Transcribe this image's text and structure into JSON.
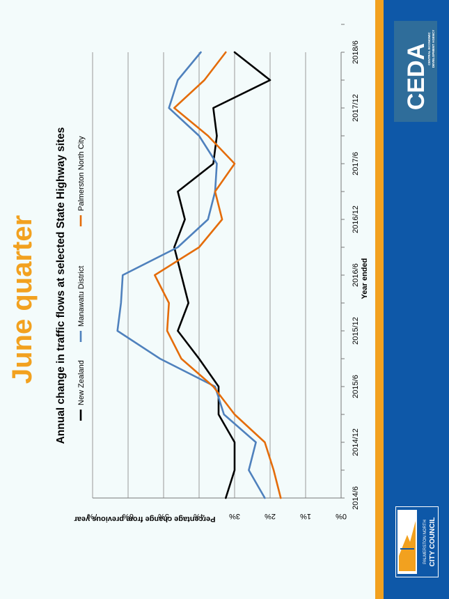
{
  "slide": {
    "heading": "June quarter",
    "accent_color": "#f2a11f",
    "band_color": "#0e58a8"
  },
  "logos": {
    "ceda": {
      "name": "CEDA",
      "subtitle_line1": "CENTRAL ECONOMIC",
      "subtitle_line2": "DEVELOPMENT AGENCY"
    },
    "pncc": {
      "line1": "PALMERSTON NORTH",
      "line2": "CITY COUNCIL"
    }
  },
  "chart_data": {
    "type": "line",
    "title": "Annual change in traffic flows at selected State Highway sites",
    "xlabel": "Year ended",
    "ylabel": "Percentage change from previous year",
    "ylim": [
      0,
      7
    ],
    "yticks": [
      "0%",
      "1%",
      "2%",
      "3%",
      "4%",
      "5%",
      "6%",
      "7%"
    ],
    "xtick_labels": [
      "2014/6",
      "2014/12",
      "2015/6",
      "2015/12",
      "2016/6",
      "2016/12",
      "2017/6",
      "2017/12",
      "2018/6"
    ],
    "grid": true,
    "legend_position": "top",
    "series": [
      {
        "name": "New Zealand",
        "color": "#000000",
        "values": [
          3.25,
          3.0,
          3.0,
          3.45,
          3.45,
          4.0,
          4.6,
          4.3,
          4.5,
          4.7,
          4.4,
          4.6,
          3.6,
          3.5,
          3.6,
          2.0,
          3.0
        ]
      },
      {
        "name": "Manawatu District",
        "color": "#4f81bd",
        "values": [
          2.15,
          2.6,
          2.4,
          3.3,
          3.55,
          5.1,
          6.3,
          6.2,
          6.15,
          4.6,
          3.75,
          3.55,
          3.5,
          4.0,
          4.85,
          4.6,
          3.95
        ]
      },
      {
        "name": "Palmerston North City",
        "color": "#e46c0a",
        "values": [
          1.7,
          1.9,
          2.15,
          3.0,
          3.6,
          4.5,
          4.9,
          4.85,
          5.25,
          4.0,
          3.35,
          3.55,
          3.0,
          3.75,
          4.7,
          3.85,
          3.25
        ]
      }
    ]
  }
}
